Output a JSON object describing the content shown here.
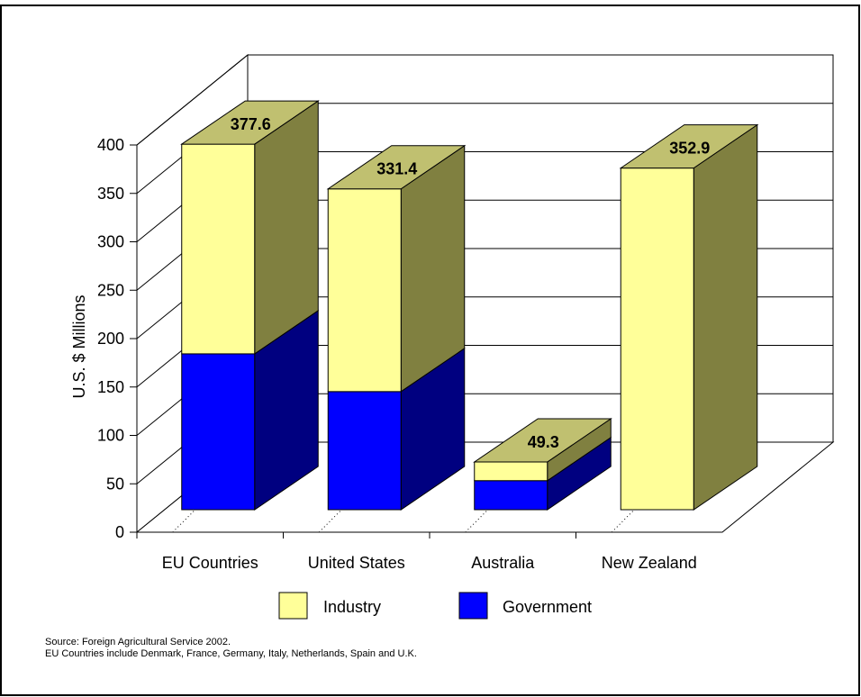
{
  "chart_data": {
    "type": "bar",
    "stacked": true,
    "three_d": true,
    "title": "",
    "ylabel": "U.S. $ Millions",
    "xlabel": "",
    "ylim": [
      0,
      400
    ],
    "yticks": [
      "0",
      "50",
      "100",
      "150",
      "200",
      "250",
      "300",
      "350",
      "400"
    ],
    "categories": [
      "EU Countries",
      "United States",
      "Australia",
      "New Zealand"
    ],
    "series": [
      {
        "name": "Government",
        "values": [
          161,
          122,
          30,
          0
        ],
        "color": "#0000ff",
        "side_color": "#000080"
      },
      {
        "name": "Industry",
        "values": [
          216.6,
          209.4,
          19.3,
          352.9
        ],
        "color": "#ffff99",
        "side_color": "#808040",
        "top_color": "#c0c070"
      }
    ],
    "totals": [
      "377.6",
      "331.4",
      "49.3",
      "352.9"
    ],
    "legend": {
      "placement": "bottom",
      "items": [
        "Industry",
        "Government"
      ]
    },
    "grid": true
  },
  "notes": {
    "source": "Source: Foreign Agricultural Service 2002.",
    "eu_members": "EU Countries include Denmark, France, Germany, Italy, Netherlands, Spain and U.K."
  }
}
